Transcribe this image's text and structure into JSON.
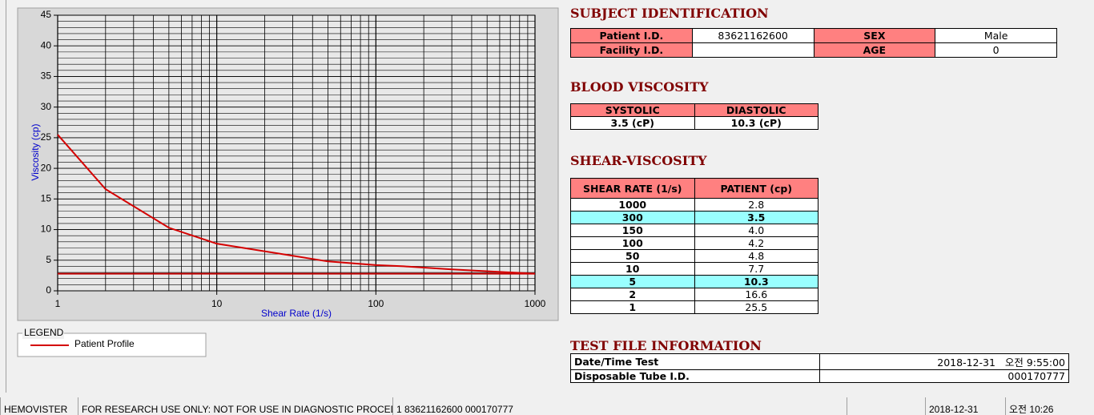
{
  "chart_data": {
    "type": "line",
    "x_label": "Shear Rate (1/s)",
    "y_label": "Viscosity (cp)",
    "x": [
      1,
      2,
      5,
      10,
      50,
      100,
      150,
      300,
      1000
    ],
    "series": [
      {
        "name": "Patient Profile",
        "color": "#d40000",
        "values": [
          25.5,
          16.6,
          10.3,
          7.7,
          4.8,
          4.2,
          4.0,
          3.5,
          2.8
        ]
      }
    ],
    "hline": {
      "value": 2.8,
      "color": "#c00000"
    },
    "xscale": "log",
    "xlim": [
      1,
      1000
    ],
    "xticks": [
      1,
      10,
      100,
      1000
    ],
    "xminor": [
      2,
      3,
      4,
      5,
      6,
      7,
      8,
      9,
      20,
      30,
      40,
      50,
      60,
      70,
      80,
      90,
      200,
      300,
      400,
      500,
      600,
      700,
      800,
      900
    ],
    "ylim": [
      0,
      45
    ],
    "yticks": [
      0,
      5,
      10,
      15,
      20,
      25,
      30,
      35,
      40,
      45
    ],
    "yminor_step": 1,
    "grid": true
  },
  "legend": {
    "title": "LEGEND"
  },
  "subject": {
    "title": "SUBJECT IDENTIFICATION",
    "rows": [
      [
        "Patient I.D.",
        "83621162600",
        "SEX",
        "Male"
      ],
      [
        "Facility I.D.",
        null,
        "AGE",
        "0"
      ]
    ]
  },
  "blood": {
    "title": "BLOOD VISCOSITY",
    "header": [
      "SYSTOLIC",
      "DIASTOLIC"
    ],
    "values": [
      "3.5 (cP)",
      "10.3 (cP)"
    ]
  },
  "shear": {
    "title": "SHEAR-VISCOSITY",
    "header": [
      "SHEAR RATE (1/s)",
      "PATIENT (cp)"
    ],
    "rows": [
      [
        "1000",
        "2.8"
      ],
      [
        "300",
        "3.5"
      ],
      [
        "150",
        "4.0"
      ],
      [
        "100",
        "4.2"
      ],
      [
        "50",
        "4.8"
      ],
      [
        "10",
        "7.7"
      ],
      [
        "5",
        "10.3"
      ],
      [
        "2",
        "16.6"
      ],
      [
        "1",
        "25.5"
      ]
    ],
    "highlight_rows": [
      1,
      6
    ]
  },
  "testfile": {
    "title": "TEST FILE INFORMATION",
    "rows": [
      [
        "Date/Time Test",
        "2018-12-31   오전 9:55:00"
      ],
      [
        "Disposable Tube I.D.",
        "000170777"
      ]
    ]
  },
  "status": [
    "HEMOVISTER",
    "FOR RESEARCH USE ONLY: NOT FOR USE IN DIAGNOSTIC PROCEDURES",
    "1  83621162600  000170777",
    "",
    "2018-12-31",
    "오전 10:26"
  ]
}
